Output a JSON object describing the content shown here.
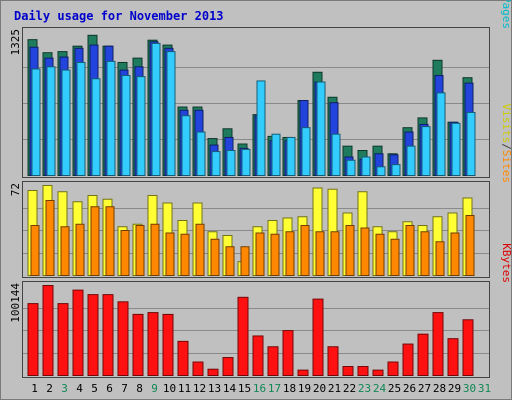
{
  "chart_data": {
    "type": "bar",
    "title": "Daily usage for November 2013",
    "days": [
      {
        "label": "1",
        "weekend": false
      },
      {
        "label": "2",
        "weekend": false
      },
      {
        "label": "3",
        "weekend": true
      },
      {
        "label": "4",
        "weekend": false
      },
      {
        "label": "5",
        "weekend": false
      },
      {
        "label": "6",
        "weekend": false
      },
      {
        "label": "7",
        "weekend": false
      },
      {
        "label": "8",
        "weekend": false
      },
      {
        "label": "9",
        "weekend": true
      },
      {
        "label": "10",
        "weekend": false
      },
      {
        "label": "11",
        "weekend": false
      },
      {
        "label": "12",
        "weekend": false
      },
      {
        "label": "13",
        "weekend": false
      },
      {
        "label": "14",
        "weekend": false
      },
      {
        "label": "15",
        "weekend": false
      },
      {
        "label": "16",
        "weekend": true
      },
      {
        "label": "17",
        "weekend": true
      },
      {
        "label": "18",
        "weekend": false
      },
      {
        "label": "19",
        "weekend": false
      },
      {
        "label": "20",
        "weekend": false
      },
      {
        "label": "21",
        "weekend": false
      },
      {
        "label": "22",
        "weekend": false
      },
      {
        "label": "23",
        "weekend": true
      },
      {
        "label": "24",
        "weekend": true
      },
      {
        "label": "25",
        "weekend": false
      },
      {
        "label": "26",
        "weekend": false
      },
      {
        "label": "27",
        "weekend": false
      },
      {
        "label": "28",
        "weekend": false
      },
      {
        "label": "29",
        "weekend": false
      },
      {
        "label": "30",
        "weekend": true
      },
      {
        "label": "31",
        "weekend": true
      }
    ],
    "panels": [
      {
        "id": "hits",
        "ymax_label": "1325",
        "ymax": 1325,
        "right_labels": [
          {
            "text": "Hits",
            "color": "#006633"
          },
          {
            "text": "/",
            "color": "#444444"
          },
          {
            "text": "Files",
            "color": "#0033cc"
          },
          {
            "text": "/",
            "color": "#444444"
          },
          {
            "text": "Pages",
            "color": "#00bbcc"
          }
        ],
        "series": [
          {
            "name": "Hits",
            "color": "#1e7b5e",
            "values": [
              1250,
              1130,
              1140,
              1190,
              1290,
              1190,
              1040,
              1080,
              1245,
              1200,
              630,
              630,
              340,
              430,
              290,
              560,
              360,
              350,
              690,
              950,
              720,
              270,
              230,
              270,
              200,
              440,
              530,
              1060,
              490,
              900,
              null
            ]
          },
          {
            "name": "Files",
            "color": "#2244dd",
            "values": [
              1180,
              1080,
              1090,
              1170,
              1200,
              1190,
              970,
              1000,
              1230,
              1170,
              600,
              600,
              280,
              350,
              250,
              550,
              320,
              320,
              690,
              860,
              670,
              170,
              150,
              200,
              190,
              400,
              470,
              920,
              490,
              850,
              null
            ]
          },
          {
            "name": "Pages",
            "color": "#33ccff",
            "values": [
              980,
              1000,
              970,
              1040,
              890,
              1050,
              920,
              910,
              1215,
              1140,
              550,
              400,
              220,
              230,
              240,
              870,
              380,
              350,
              440,
              860,
              380,
              140,
              170,
              80,
              100,
              270,
              450,
              760,
              480,
              580,
              null
            ]
          }
        ]
      },
      {
        "id": "visits",
        "ymax_label": "72",
        "ymax": 72,
        "right_labels": [
          {
            "text": "Visits",
            "color": "#cccc00"
          },
          {
            "text": "/",
            "color": "#444444"
          },
          {
            "text": "Sites",
            "color": "#ff8800"
          }
        ],
        "series": [
          {
            "name": "Visits",
            "color": "#ffff33",
            "values": [
              68,
              72,
              67,
              59,
              64,
              61,
              39,
              41,
              64,
              58,
              44,
              58,
              35,
              32,
              11,
              39,
              44,
              46,
              47,
              70,
              69,
              50,
              67,
              39,
              35,
              43,
              40,
              47,
              50,
              62,
              null
            ]
          },
          {
            "name": "Sites",
            "color": "#ff8800",
            "values": [
              40,
              60,
              39,
              41,
              55,
              55,
              36,
              40,
              41,
              34,
              33,
              41,
              29,
              23,
              23,
              34,
              33,
              35,
              40,
              35,
              35,
              40,
              38,
              33,
              29,
              40,
              35,
              27,
              34,
              48,
              null
            ]
          }
        ]
      },
      {
        "id": "kbytes",
        "ymax_label": "100144",
        "ymax": 100144,
        "right_labels": [
          {
            "text": "KBytes",
            "color": "#dd0000"
          }
        ],
        "series": [
          {
            "name": "KBytes",
            "color": "#ff1111",
            "values": [
              80000,
              100144,
              80000,
              95000,
              90000,
              90000,
              82000,
              68000,
              70000,
              68000,
              38000,
              15000,
              7000,
              20000,
              87000,
              44000,
              32000,
              50000,
              6000,
              85000,
              32000,
              10000,
              10000,
              6000,
              15000,
              35000,
              46000,
              70000,
              41000,
              62000,
              null
            ]
          }
        ]
      }
    ]
  }
}
